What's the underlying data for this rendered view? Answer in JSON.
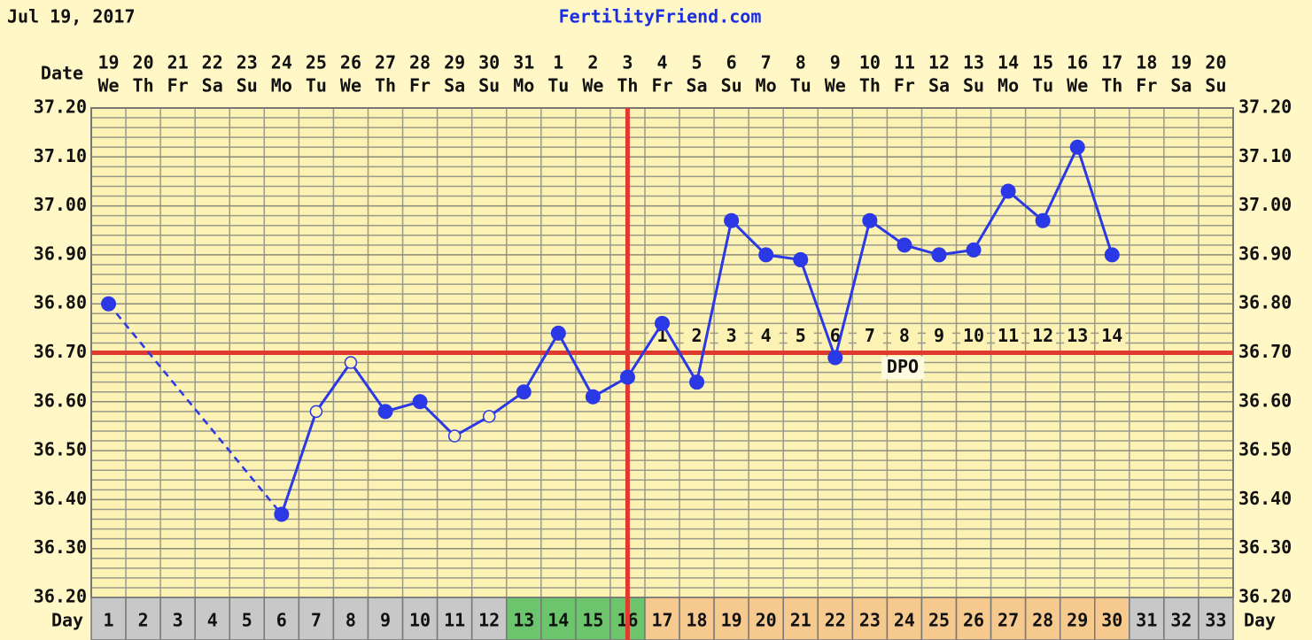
{
  "chart_data": {
    "type": "line",
    "title": "FertilityFriend.com",
    "date": "Jul 19, 2017",
    "date_label": "Date",
    "day_label": "Day",
    "categories": [
      "1",
      "2",
      "3",
      "4",
      "5",
      "6",
      "7",
      "8",
      "9",
      "10",
      "11",
      "12",
      "13",
      "14",
      "15",
      "16",
      "17",
      "18",
      "19",
      "20",
      "21",
      "22",
      "23",
      "24",
      "25",
      "26",
      "27",
      "28",
      "29",
      "30",
      "31",
      "32",
      "33"
    ],
    "dates": [
      "19",
      "20",
      "21",
      "22",
      "23",
      "24",
      "25",
      "26",
      "27",
      "28",
      "29",
      "30",
      "31",
      "1",
      "2",
      "3",
      "4",
      "5",
      "6",
      "7",
      "8",
      "9",
      "10",
      "11",
      "12",
      "13",
      "14",
      "15",
      "16",
      "17",
      "18",
      "19",
      "20"
    ],
    "weekdays": [
      "We",
      "Th",
      "Fr",
      "Sa",
      "Su",
      "Mo",
      "Tu",
      "We",
      "Th",
      "Fr",
      "Sa",
      "Su",
      "Mo",
      "Tu",
      "We",
      "Th",
      "Fr",
      "Sa",
      "Su",
      "Mo",
      "Tu",
      "We",
      "Th",
      "Fr",
      "Sa",
      "Su",
      "Mo",
      "Tu",
      "We",
      "Th",
      "Fr",
      "Sa",
      "Su"
    ],
    "day_colors": [
      "#c8c8c8",
      "#c8c8c8",
      "#c8c8c8",
      "#c8c8c8",
      "#c8c8c8",
      "#c8c8c8",
      "#c8c8c8",
      "#c8c8c8",
      "#c8c8c8",
      "#c8c8c8",
      "#c8c8c8",
      "#c8c8c8",
      "#6cc46c",
      "#6cc46c",
      "#6cc46c",
      "#6cc46c",
      "#f6c98e",
      "#f6c98e",
      "#f6c98e",
      "#f6c98e",
      "#f6c98e",
      "#f6c98e",
      "#f6c98e",
      "#f6c98e",
      "#f6c98e",
      "#f6c98e",
      "#f6c98e",
      "#f6c98e",
      "#f6c98e",
      "#f6c98e",
      "#c8c8c8",
      "#c8c8c8",
      "#c8c8c8"
    ],
    "series": [
      {
        "color": "#2a38e6",
        "values": [
          36.8,
          null,
          null,
          null,
          null,
          36.37,
          36.58,
          36.68,
          36.58,
          36.6,
          36.53,
          36.57,
          36.62,
          36.74,
          36.61,
          36.65,
          36.76,
          36.64,
          36.97,
          36.9,
          36.89,
          36.69,
          36.97,
          36.92,
          36.9,
          36.91,
          37.03,
          36.97,
          37.12,
          36.9,
          null,
          null,
          null
        ],
        "markers": [
          "filled",
          null,
          null,
          null,
          null,
          "filled",
          "open",
          "open",
          "filled",
          "filled",
          "open",
          "open",
          "filled",
          "filled",
          "filled",
          "filled",
          "filled",
          "filled",
          "filled",
          "filled",
          "filled",
          "filled",
          "filled",
          "filled",
          "filled",
          "filled",
          "filled",
          "filled",
          "filled",
          "filled",
          null,
          null,
          null
        ]
      }
    ],
    "ylim": [
      36.2,
      37.2
    ],
    "yticks": [
      {
        "value": 36.2,
        "label": "36.20"
      },
      {
        "value": 36.3,
        "label": "36.30"
      },
      {
        "value": 36.4,
        "label": "36.40"
      },
      {
        "value": 36.5,
        "label": "36.50"
      },
      {
        "value": 36.6,
        "label": "36.60"
      },
      {
        "value": 36.7,
        "label": "36.70"
      },
      {
        "value": 36.8,
        "label": "36.80"
      },
      {
        "value": 36.9,
        "label": "36.90"
      },
      {
        "value": 37.0,
        "label": "37.00"
      },
      {
        "value": 37.1,
        "label": "37.10"
      },
      {
        "value": 37.2,
        "label": "37.20"
      }
    ],
    "minor_per_major": 5,
    "coverline": 36.7,
    "ovulation_day": 16,
    "reference_color": "#e03a2e",
    "dpo_title": "DPO",
    "dpo_labels": [
      null,
      null,
      null,
      null,
      null,
      null,
      null,
      null,
      null,
      null,
      null,
      null,
      null,
      null,
      null,
      null,
      1,
      2,
      3,
      4,
      5,
      6,
      7,
      8,
      9,
      10,
      11,
      12,
      13,
      14,
      null,
      null,
      null
    ]
  }
}
